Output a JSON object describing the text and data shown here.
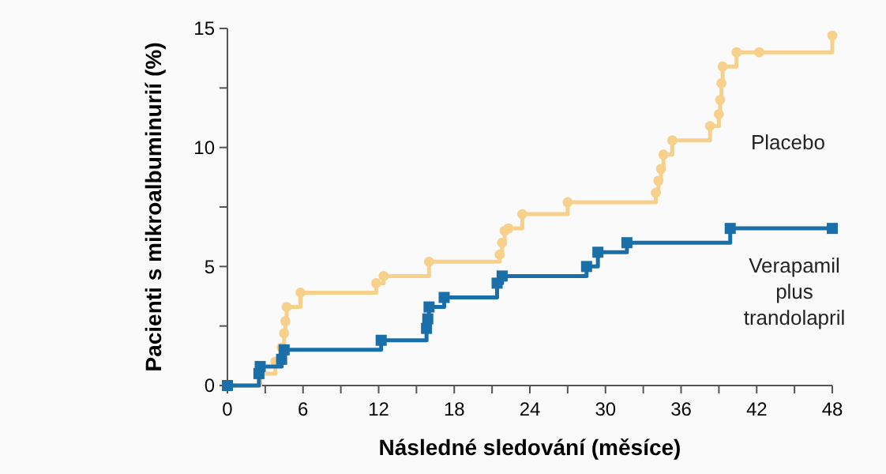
{
  "chart_data": {
    "type": "step",
    "xlabel": "Následné sledování (měsíce)",
    "ylabel": "Pacienti s mikroalbuminurií (%)",
    "xlim": [
      0,
      48
    ],
    "xticks": [
      0,
      {
        "value": 3,
        "label": null
      },
      6,
      {
        "value": 9,
        "label": null
      },
      12,
      {
        "value": 15,
        "label": null
      },
      18,
      {
        "value": 21,
        "label": null
      },
      24,
      {
        "value": 27,
        "label": null
      },
      30,
      {
        "value": 33,
        "label": null
      },
      36,
      {
        "value": 39,
        "label": null
      },
      42,
      {
        "value": 45,
        "label": null
      },
      48
    ],
    "ylim": [
      0,
      15
    ],
    "yticks": [
      0,
      {
        "value": 2.5,
        "label": null
      },
      5,
      {
        "value": 7.5,
        "label": null
      },
      10,
      {
        "value": 12.5,
        "label": null
      },
      15
    ],
    "grid": false,
    "series": [
      {
        "name": "Placebo",
        "color": "#f7d08c",
        "marker": "circle",
        "x": [
          0,
          2.6,
          3.8,
          4.3,
          4.5,
          4.6,
          4.7,
          5.8,
          11.8,
          12.4,
          16,
          21.6,
          21.8,
          22,
          22.3,
          23.4,
          27,
          34,
          34.2,
          34.4,
          34.6,
          35.3,
          38.3,
          39,
          39.1,
          39.2,
          39.3,
          40.4,
          42.2,
          48
        ],
        "values": [
          0,
          0.5,
          1.0,
          1.6,
          2.2,
          2.7,
          3.3,
          3.9,
          4.3,
          4.6,
          5.2,
          5.5,
          6.0,
          6.5,
          6.6,
          7.2,
          7.7,
          8.1,
          8.6,
          9.1,
          9.7,
          10.3,
          10.9,
          11.4,
          12.0,
          12.7,
          13.4,
          14.0,
          14.0,
          14.7
        ]
      },
      {
        "name": "Verapamil plus trandolapril",
        "color": "#1b6fa8",
        "marker": "square",
        "x": [
          0,
          2.5,
          2.6,
          4.3,
          4.5,
          12.2,
          15.8,
          15.9,
          16,
          17.2,
          21.4,
          21.8,
          28.5,
          29.4,
          31.7,
          39.9,
          48
        ],
        "values": [
          0,
          0.5,
          0.8,
          1.1,
          1.5,
          1.9,
          2.4,
          2.8,
          3.3,
          3.7,
          4.3,
          4.6,
          5.0,
          5.6,
          6.0,
          6.6,
          6.6
        ]
      }
    ]
  }
}
